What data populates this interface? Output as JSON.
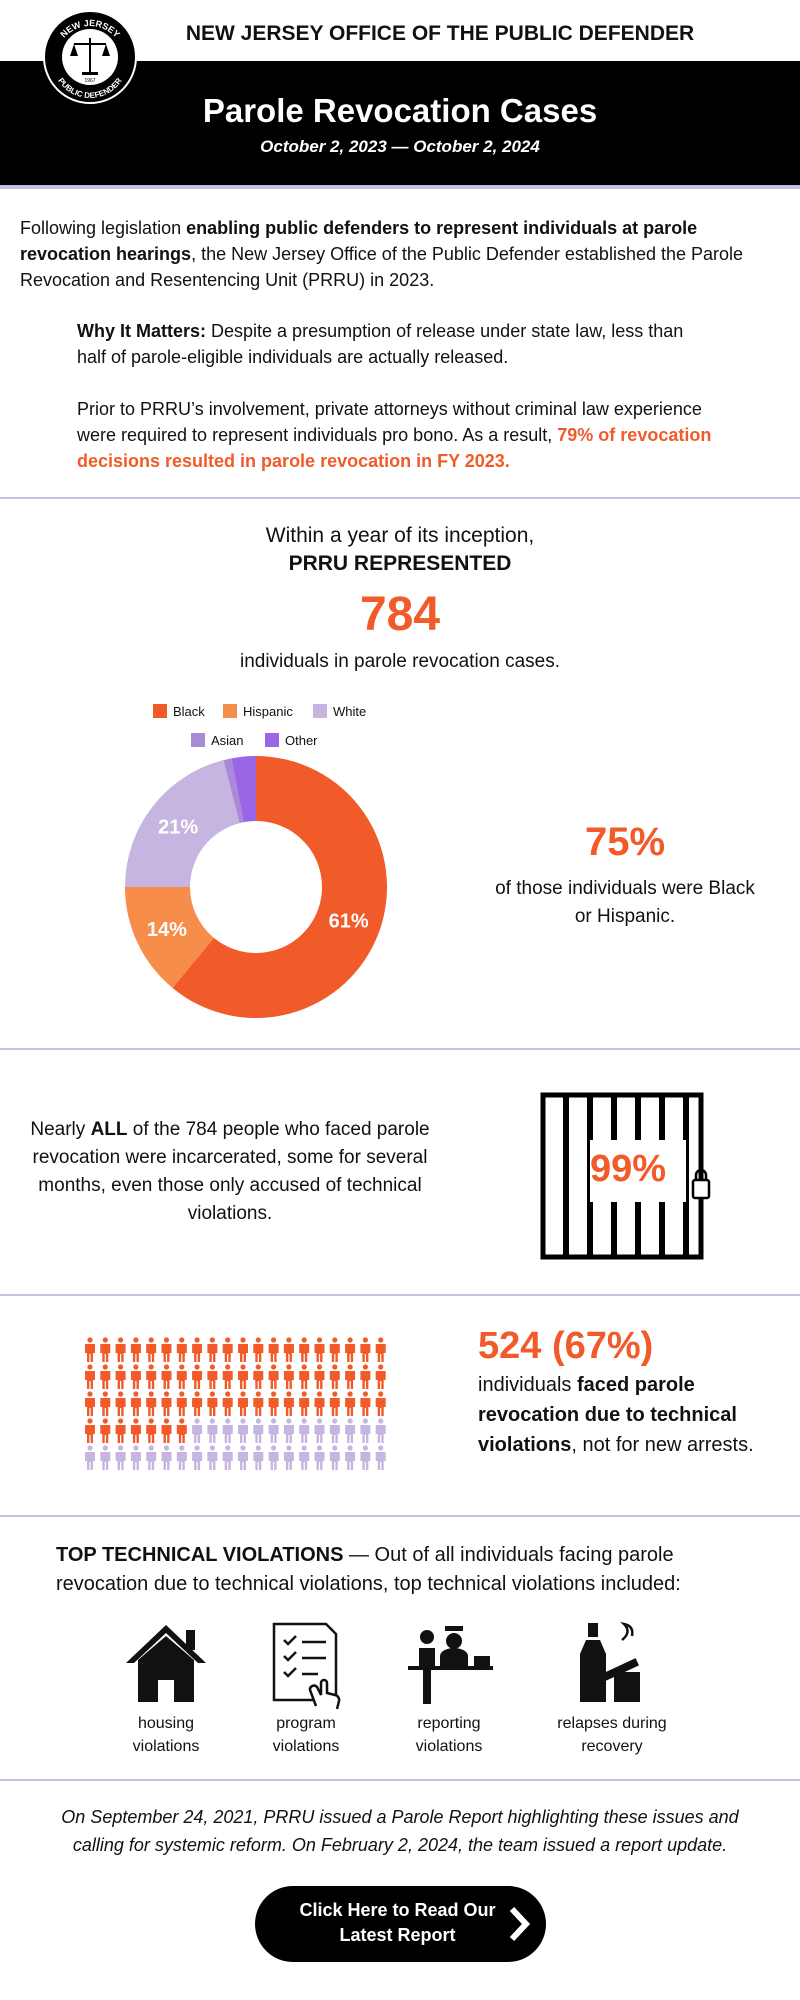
{
  "header": {
    "org": "NEW JERSEY OFFICE OF THE PUBLIC DEFENDER",
    "logo_top": "NEW JERSEY",
    "logo_bottom": "PUBLIC DEFENDER",
    "logo_year": "1967",
    "title": "Parole Revocation Cases",
    "dates": "October 2, 2023 — October 2, 2024"
  },
  "intro": {
    "parts": [
      "Following legislation ",
      "enabling public defenders to represent individuals at parole revocation hearings",
      ", the New Jersey Office of the Public Defender established the Parole Revocation and Resentencing Unit (PRRU) in 2023."
    ]
  },
  "why": {
    "label": "Why It Matters:",
    "text": " Despite a presumption of release under state law, less than half of parole-eligible individuals are actually released."
  },
  "prior": {
    "text": "Prior to PRRU’s involvement, private attorneys without criminal law experience were required to represent individuals pro bono. As a result, ",
    "highlight": "79% of revocation decisions resulted in parole revocation in FY 2023."
  },
  "represented": {
    "lead": "Within a year of its inception,",
    "heading": "PRRU REPRESENTED",
    "count": "784",
    "text": "individuals in parole revocation cases."
  },
  "chart_data": {
    "type": "pie",
    "donut": true,
    "categories": [
      "Black",
      "Hispanic",
      "White",
      "Asian",
      "Other"
    ],
    "values": [
      61,
      14,
      21,
      1,
      3
    ],
    "value_labels": [
      "61%",
      "14%",
      "21%",
      null,
      null
    ],
    "colors": [
      "#f15a29",
      "#f78d4b",
      "#c6b5e1",
      "#a88ad9",
      "#9a66e6"
    ]
  },
  "race_stat": {
    "value": "75%",
    "text": "of those individuals were Black or Hispanic."
  },
  "incarcerated": {
    "parts": [
      "Nearly ",
      "ALL",
      " of the 784 people who faced parole revocation were incarcerated, some for several months, even those only accused of technical violations."
    ],
    "stat": "99%"
  },
  "technical": {
    "percent": 67,
    "label": "524 (67%)",
    "parts": [
      "individuals ",
      "faced parole revocation due to technical violations",
      ", not for new arrests."
    ]
  },
  "violations": {
    "heading": "TOP TECHNICAL VIOLATIONS",
    "text": " — Out of all individuals facing parole revocation due to technical violations, top technical violations included:",
    "items": [
      "housing violations",
      "program violations",
      "reporting violations",
      "relapses during recovery"
    ]
  },
  "footer": {
    "text": "On September 24, 2021, PRRU issued a Parole Report highlighting these issues and calling for systemic reform. On February 2, 2024, the team issued a report update.",
    "button": "Click Here to Read Our Latest Report"
  }
}
